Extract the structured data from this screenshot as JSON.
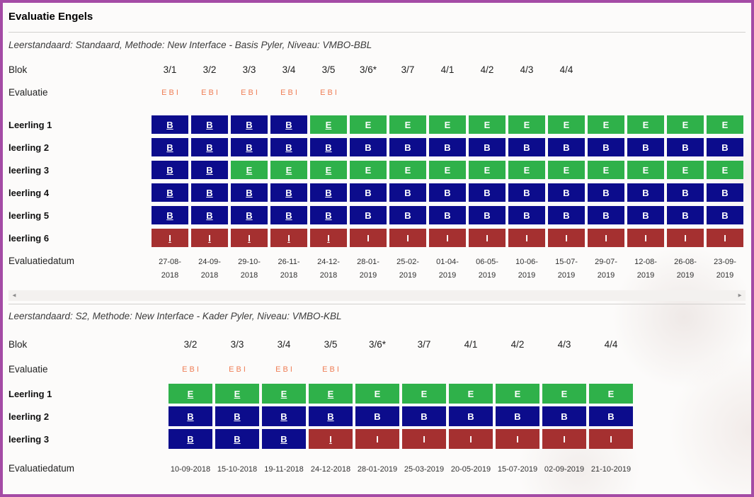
{
  "window": {
    "title": "Evaluatie Engels"
  },
  "colors": {
    "E": "#2FB14A",
    "B": "#0C0C8C",
    "I": "#A53030",
    "link": "#EF7E56",
    "border": "#A44BA5"
  },
  "scrollbar": {
    "left_arrow": "◄",
    "right_arrow": "►"
  },
  "sections": [
    {
      "subtitle": "Leerstandaard: Standaard, Methode: New Interface - Basis Pyler, Niveau: VMBO-BBL",
      "labels": {
        "blok": "Blok",
        "evaluatie": "Evaluatie",
        "datum": "Evaluatiedatum"
      },
      "bloks": [
        "3/1",
        "3/2",
        "3/3",
        "3/4",
        "3/5",
        "3/6*",
        "3/7",
        "4/1",
        "4/2",
        "4/3",
        "4/4"
      ],
      "evaluatie_groups": [
        [
          "E",
          "B",
          "I"
        ],
        [
          "E",
          "B",
          "I"
        ],
        [
          "E",
          "B",
          "I"
        ],
        [
          "E",
          "B",
          "I"
        ],
        [
          "E",
          "B",
          "I"
        ]
      ],
      "students": [
        {
          "name": "Leerling 1",
          "cells": [
            "B!",
            "B!",
            "B!",
            "B!",
            "E!",
            "E",
            "E",
            "E",
            "E",
            "E",
            "E",
            "E",
            "E",
            "E",
            "E"
          ]
        },
        {
          "name": "leerling 2",
          "cells": [
            "B!",
            "B!",
            "B!",
            "B!",
            "B!",
            "B",
            "B",
            "B",
            "B",
            "B",
            "B",
            "B",
            "B",
            "B",
            "B"
          ]
        },
        {
          "name": "leerling 3",
          "cells": [
            "B!",
            "B!",
            "E!",
            "E!",
            "E!",
            "E",
            "E",
            "E",
            "E",
            "E",
            "E",
            "E",
            "E",
            "E",
            "E"
          ]
        },
        {
          "name": "leerling 4",
          "cells": [
            "B!",
            "B!",
            "B!",
            "B!",
            "B!",
            "B",
            "B",
            "B",
            "B",
            "B",
            "B",
            "B",
            "B",
            "B",
            "B"
          ]
        },
        {
          "name": "leerling 5",
          "cells": [
            "B!",
            "B!",
            "B!",
            "B!",
            "B!",
            "B",
            "B",
            "B",
            "B",
            "B",
            "B",
            "B",
            "B",
            "B",
            "B"
          ]
        },
        {
          "name": "leerling 6",
          "cells": [
            "I!",
            "I!",
            "I!",
            "I!",
            "I!",
            "I",
            "I",
            "I",
            "I",
            "I",
            "I",
            "I",
            "I",
            "I",
            "I"
          ]
        }
      ],
      "dates": [
        "27-08-2018",
        "24-09-2018",
        "29-10-2018",
        "26-11-2018",
        "24-12-2018",
        "28-01-2019",
        "25-02-2019",
        "01-04-2019",
        "06-05-2019",
        "10-06-2019",
        "15-07-2019",
        "29-07-2019",
        "12-08-2019",
        "26-08-2019",
        "23-09-2019"
      ]
    },
    {
      "subtitle": "Leerstandaard: S2, Methode: New Interface - Kader Pyler, Niveau: VMBO-KBL",
      "labels": {
        "blok": "Blok",
        "evaluatie": "Evaluatie",
        "datum": "Evaluatiedatum"
      },
      "bloks": [
        "3/2",
        "3/3",
        "3/4",
        "3/5",
        "3/6*",
        "3/7",
        "4/1",
        "4/2",
        "4/3",
        "4/4"
      ],
      "evaluatie_groups": [
        [
          "E",
          "B",
          "I"
        ],
        [
          "E",
          "B",
          "I"
        ],
        [
          "E",
          "B",
          "I"
        ],
        [
          "E",
          "B",
          "I"
        ]
      ],
      "students": [
        {
          "name": "Leerling 1",
          "cells": [
            "E!",
            "E!",
            "E!",
            "E!",
            "E",
            "E",
            "E",
            "E",
            "E",
            "E"
          ]
        },
        {
          "name": "leerling 2",
          "cells": [
            "B!",
            "B!",
            "B!",
            "B!",
            "B",
            "B",
            "B",
            "B",
            "B",
            "B"
          ]
        },
        {
          "name": "leerling 3",
          "cells": [
            "B!",
            "B!",
            "B!",
            "I!",
            "I",
            "I",
            "I",
            "I",
            "I",
            "I"
          ]
        }
      ],
      "dates": [
        "10-09-2018",
        "15-10-2018",
        "19-11-2018",
        "24-12-2018",
        "28-01-2019",
        "25-03-2019",
        "20-05-2019",
        "15-07-2019",
        "02-09-2019",
        "21-10-2019"
      ]
    }
  ]
}
